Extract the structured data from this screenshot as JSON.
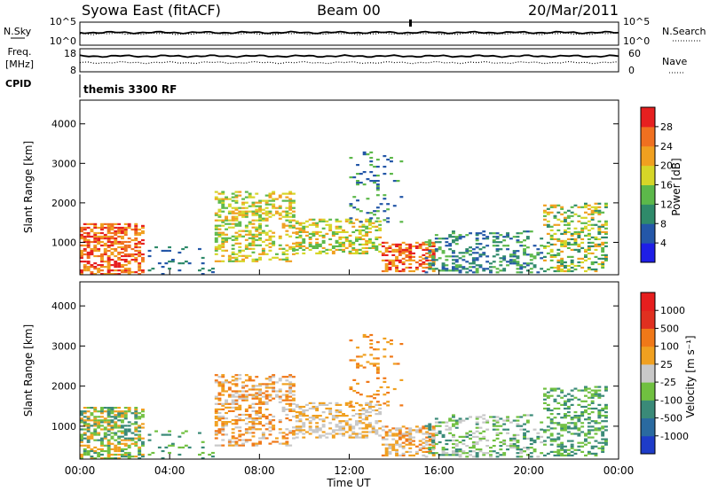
{
  "header": {
    "station": "Syowa East (fitACF)",
    "beam": "Beam 00",
    "date": "20/Mar/2011"
  },
  "side_labels": {
    "nsky": "N.Sky",
    "nsearch": "N.Search",
    "freq_line1": "Freq.",
    "freq_line2": "[MHz]",
    "cpid": "CPID",
    "nave": "Nave"
  },
  "chart_data": [
    {
      "type": "line",
      "panel": "N.Sky / N.Search",
      "left_ticks": [
        "10^5",
        "10^0"
      ],
      "right_ticks": [
        "10^5",
        "10^0"
      ],
      "series": [
        {
          "name": "N.Sky",
          "style": "solid",
          "level": 0.45
        },
        {
          "name": "N.Search",
          "style": "dotted",
          "level": 0.5
        }
      ]
    },
    {
      "type": "line",
      "panel": "Freq / Nave",
      "left_ticks": [
        "18",
        "8"
      ],
      "right_ticks": [
        "60",
        "0"
      ],
      "series": [
        {
          "name": "Freq. [MHz]",
          "style": "solid",
          "level": 0.32
        },
        {
          "name": "Nave",
          "style": "dotted",
          "level": 0.6
        }
      ]
    },
    {
      "type": "table",
      "panel": "CPID",
      "text": "themis 3300 RF"
    },
    {
      "type": "heatmap",
      "panel": "Power",
      "ylabel": "Slant Range [km]",
      "ylim": [
        180,
        4600
      ],
      "yticks": [
        1000,
        2000,
        3000,
        4000
      ],
      "colorbar_label": "Power [dB]",
      "colorbar_ticks": [
        "28",
        "24",
        "20",
        "16",
        "12",
        "8",
        "4"
      ],
      "colors": [
        "#1e1ee6",
        "#2457a8",
        "#2f8a6a",
        "#5cb84a",
        "#d6d628",
        "#f0a020",
        "#f07020",
        "#e62020"
      ]
    },
    {
      "type": "heatmap",
      "panel": "Velocity",
      "ylabel": "Slant Range [km]",
      "ylim": [
        180,
        4600
      ],
      "yticks": [
        1000,
        2000,
        3000,
        4000
      ],
      "colorbar_label": "Velocity [m s⁻¹]",
      "colorbar_ticks": [
        "1000",
        "500",
        "100",
        "25",
        "-25",
        "-100",
        "-500",
        "-1000"
      ],
      "colors": [
        "#1e3cc8",
        "#2a6aa0",
        "#3a8a78",
        "#70c040",
        "#c8c8c8",
        "#f0a020",
        "#f07818",
        "#e03020",
        "#e61e1e"
      ]
    }
  ],
  "x_axis": {
    "ticks": [
      "00:00",
      "04:00",
      "08:00",
      "12:00",
      "16:00",
      "20:00",
      "00:00"
    ],
    "label": "Time UT"
  }
}
